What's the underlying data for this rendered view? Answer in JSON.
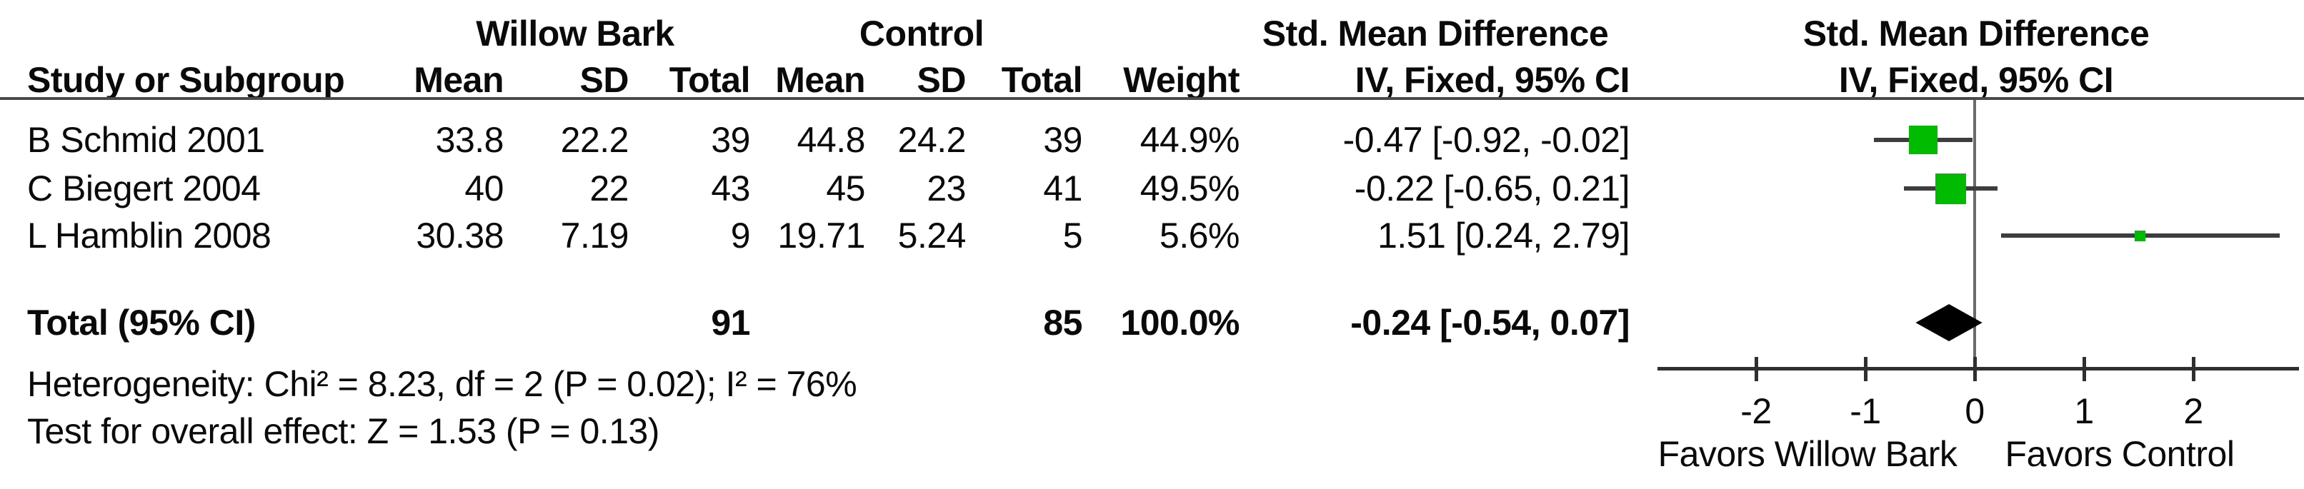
{
  "colors": {
    "square": "#00bb00",
    "diamond": "#000000",
    "ci_line": "#3d3d3d",
    "axis_line": "#2f2f2f",
    "header_rule": "#4a4a4a",
    "zero_line": "#6b6b6b",
    "text": "#0a0a0a"
  },
  "chart_data": {
    "type": "forest",
    "groups": [
      "Willow Bark",
      "Control"
    ],
    "effect_title": "Std. Mean Difference",
    "col_headers": {
      "study": "Study or Subgroup",
      "mean": "Mean",
      "sd": "SD",
      "total": "Total",
      "weight": "Weight",
      "effect": "IV, Fixed, 95% CI"
    },
    "studies": [
      {
        "name": "B Schmid 2001",
        "exp_mean": "33.8",
        "exp_sd": "22.2",
        "exp_total": "39",
        "ctrl_mean": "44.8",
        "ctrl_sd": "24.2",
        "ctrl_total": "39",
        "weight": "44.9%",
        "weight_pct": 44.9,
        "effect_text": "-0.47 [-0.92, -0.02]",
        "smd": -0.47,
        "ci_low": -0.92,
        "ci_high": -0.02
      },
      {
        "name": "C Biegert 2004",
        "exp_mean": "40",
        "exp_sd": "22",
        "exp_total": "43",
        "ctrl_mean": "45",
        "ctrl_sd": "23",
        "ctrl_total": "41",
        "weight": "49.5%",
        "weight_pct": 49.5,
        "effect_text": "-0.22 [-0.65, 0.21]",
        "smd": -0.22,
        "ci_low": -0.65,
        "ci_high": 0.21
      },
      {
        "name": "L Hamblin 2008",
        "exp_mean": "30.38",
        "exp_sd": "7.19",
        "exp_total": "9",
        "ctrl_mean": "19.71",
        "ctrl_sd": "5.24",
        "ctrl_total": "5",
        "weight": "5.6%",
        "weight_pct": 5.6,
        "effect_text": "1.51 [0.24, 2.79]",
        "smd": 1.51,
        "ci_low": 0.24,
        "ci_high": 2.79
      }
    ],
    "total_row": {
      "label": "Total (95% CI)",
      "exp_total": "91",
      "ctrl_total": "85",
      "weight": "100.0%",
      "effect_text": "-0.24 [-0.54, 0.07]",
      "smd": -0.24,
      "ci_low": -0.54,
      "ci_high": 0.07
    },
    "footnotes": {
      "heterogeneity": "Heterogeneity: Chi² = 8.23, df = 2 (P = 0.02); I² = 76%",
      "overall_effect": "Test for overall effect: Z = 1.53 (P = 0.13)"
    },
    "axis": {
      "ticks": [
        -2,
        -1,
        0,
        1,
        2
      ],
      "tick_labels": [
        "-2",
        "-1",
        "0",
        "1",
        "2"
      ],
      "min": -2.9,
      "max": 3.0,
      "favors_left": "Favors Willow Bark",
      "favors_right": "Favors Control"
    }
  }
}
